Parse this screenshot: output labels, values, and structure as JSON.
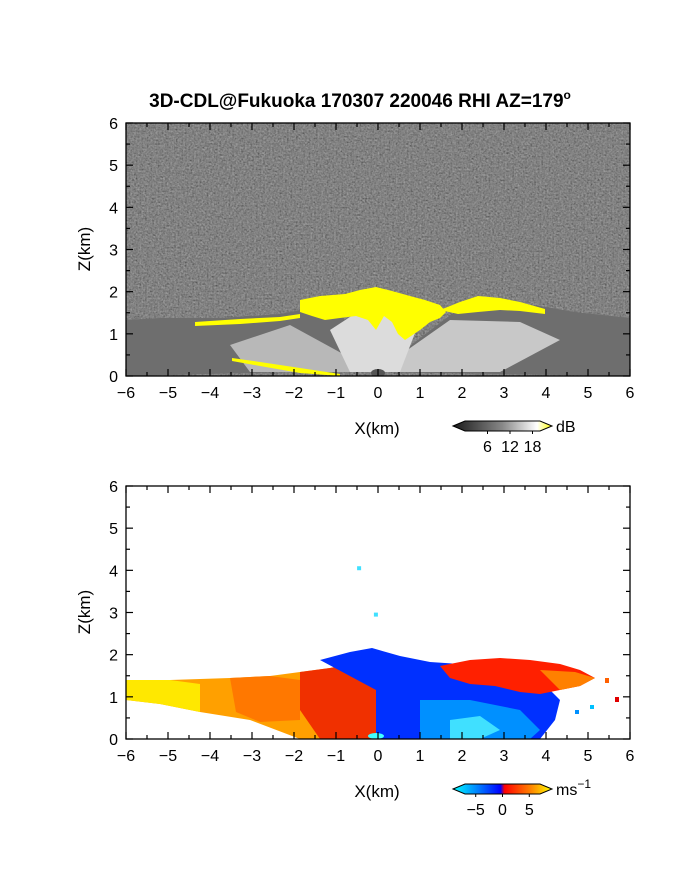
{
  "title": "3D-CDL@Fukuoka 170307 220046 RHI AZ=179",
  "title_sup": "o",
  "chart_data": [
    {
      "type": "heatmap",
      "quantity": "SNR",
      "xlabel": "X(km)",
      "ylabel": "Z(km)",
      "xlim": [
        -6,
        6
      ],
      "ylim": [
        0,
        6
      ],
      "xticks": [
        "−6",
        "−5",
        "−4",
        "−3",
        "−2",
        "−1",
        "0",
        "1",
        "2",
        "3",
        "4",
        "5",
        "6"
      ],
      "yticks": [
        "0",
        "1",
        "2",
        "3",
        "4",
        "5",
        "6"
      ],
      "colorbar": {
        "unit": "dB",
        "ticks": [
          6,
          12,
          18
        ],
        "tick_labels": [
          "6",
          "12",
          "18"
        ],
        "range": [
          0,
          20
        ],
        "colors": [
          "#000000",
          "#ffffff",
          "#ffff00"
        ]
      },
      "echo_top_km": 2.05,
      "echo_regions": [
        {
          "x": [
            -6,
            -1.5
          ],
          "z": [
            0,
            1.35
          ],
          "level": "gray"
        },
        {
          "x": [
            -1.5,
            1.2
          ],
          "z": [
            1.3,
            2.05
          ],
          "level": "saturated"
        },
        {
          "x": [
            1.5,
            4.0
          ],
          "z": [
            1.3,
            1.75
          ],
          "level": "saturated"
        },
        {
          "x": [
            4.0,
            6.0
          ],
          "z": [
            0,
            1.25
          ],
          "level": "gray"
        }
      ]
    },
    {
      "type": "heatmap",
      "quantity": "Doppler velocity",
      "xlabel": "X(km)",
      "ylabel": "Z(km)",
      "xlim": [
        -6,
        6
      ],
      "ylim": [
        0,
        6
      ],
      "xticks": [
        "−6",
        "−5",
        "−4",
        "−3",
        "−2",
        "−1",
        "0",
        "1",
        "2",
        "3",
        "4",
        "5",
        "6"
      ],
      "yticks": [
        "0",
        "1",
        "2",
        "3",
        "4",
        "5",
        "6"
      ],
      "colorbar": {
        "unit": "ms",
        "unit_sup": "−1",
        "ticks": [
          -5,
          0,
          5
        ],
        "tick_labels": [
          "−5",
          "0",
          "5"
        ],
        "range": [
          -7,
          7
        ],
        "colors": [
          "#00ffff",
          "#0080ff",
          "#0000ff",
          "#ff0000",
          "#ff8000",
          "#ffff00"
        ]
      },
      "echo_regions": [
        {
          "x": [
            -6,
            0
          ],
          "z": [
            0,
            1.35
          ],
          "sign": "positive",
          "approx_value": 4
        },
        {
          "x": [
            -1.5,
            0
          ],
          "z": [
            0.2,
            2.0
          ],
          "sign": "positive",
          "approx_value": 1
        },
        {
          "x": [
            0,
            4.2
          ],
          "z": [
            0,
            1.6
          ],
          "sign": "negative",
          "approx_value": -2
        },
        {
          "x": [
            1.8,
            5.4
          ],
          "z": [
            1.4,
            1.9
          ],
          "sign": "positive",
          "approx_value": 1
        }
      ],
      "isolated_points": [
        {
          "x": -0.45,
          "z": 4.05
        },
        {
          "x": -0.05,
          "z": 2.95
        }
      ]
    }
  ]
}
